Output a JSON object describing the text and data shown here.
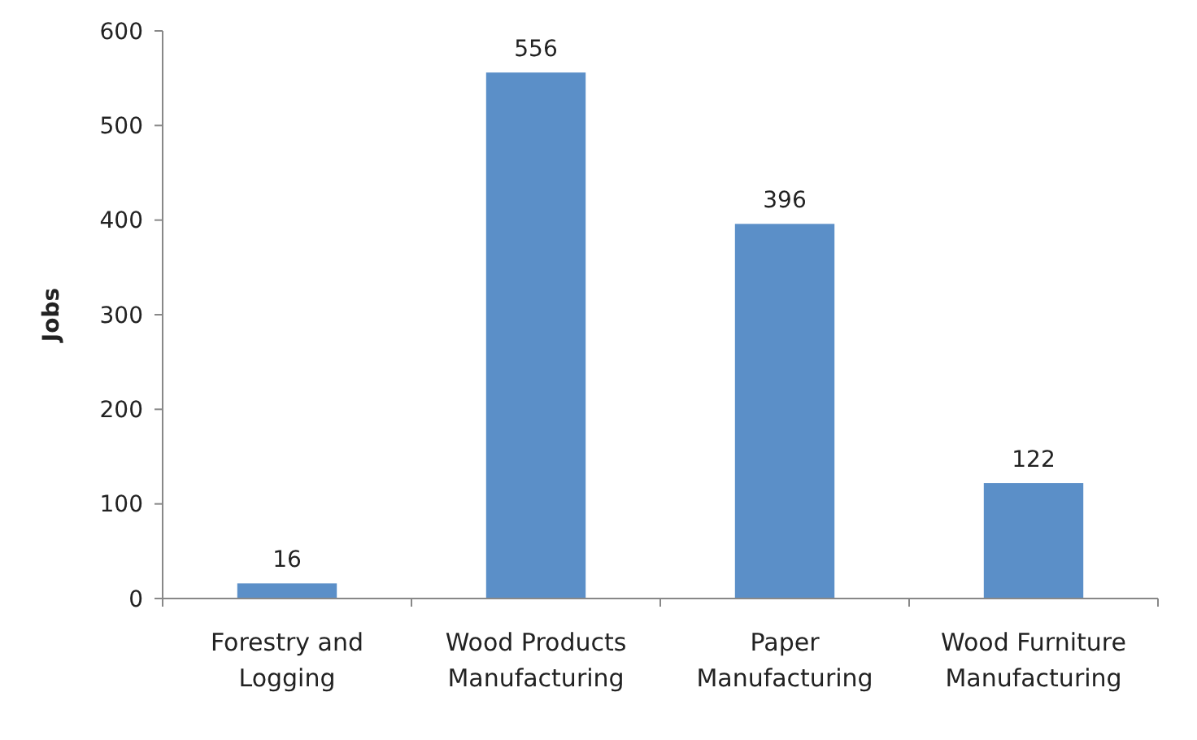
{
  "chart_data": {
    "type": "bar",
    "ylabel": "Jobs",
    "categories": [
      "Forestry and Logging",
      "Wood Products Manufacturing",
      "Paper Manufacturing",
      "Wood Furniture Manufacturing"
    ],
    "values": [
      16,
      556,
      396,
      122
    ],
    "color": "#5b8fc8",
    "ylim": [
      0,
      600
    ],
    "yticks": [
      0,
      100,
      200,
      300,
      400,
      500,
      600
    ],
    "data_labels": true,
    "grid": false
  }
}
